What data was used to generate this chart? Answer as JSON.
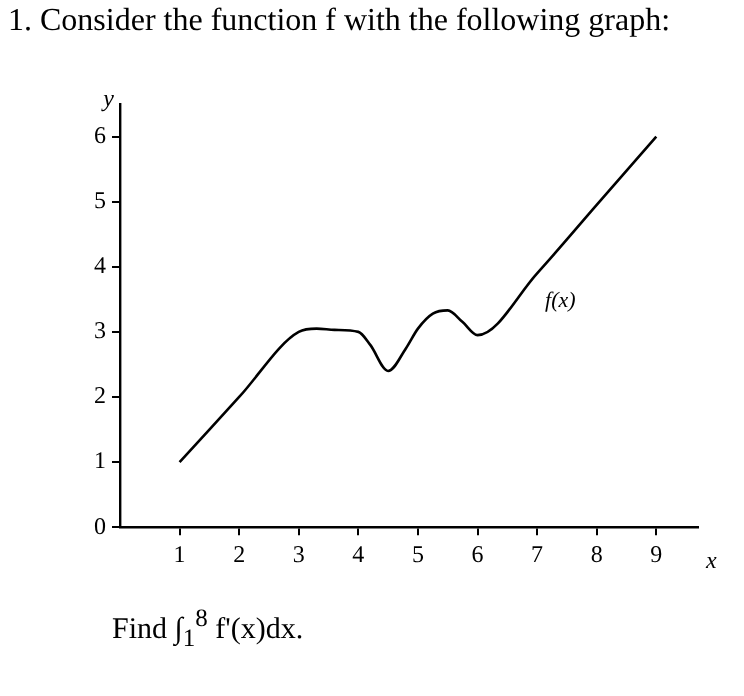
{
  "chart_data": {
    "type": "line",
    "title": "1. Consider the function f with the following graph:",
    "xlabel": "x",
    "ylabel": "y",
    "x": [
      1,
      2,
      3,
      3.3,
      3.6,
      4,
      4.2,
      4.5,
      4.8,
      5,
      5.25,
      5.5,
      5.75,
      6,
      7,
      8,
      9
    ],
    "series": [
      {
        "color": "#000000",
        "values": [
          1,
          2,
          3,
          3.05,
          3.03,
          3,
          2.8,
          2.4,
          2.75,
          3.05,
          3.28,
          3.33,
          3.15,
          2.95,
          3.9,
          4.95,
          6
        ]
      }
    ],
    "xlim": [
      0,
      9.7
    ],
    "xticks": [
      1,
      2,
      3,
      4,
      5,
      6,
      7,
      8,
      9
    ],
    "ylim": [
      0,
      6.5
    ],
    "yticks": [
      0,
      1,
      2,
      3,
      4,
      5,
      6
    ],
    "grid": false,
    "legend": false,
    "marker": "none",
    "line_style": "solid",
    "annotations": [
      {
        "text": "f(x)",
        "x": 7,
        "y": 3.9
      },
      "Find ∫$_{1}$$^{8}$ f'(x)dx."
    ]
  }
}
